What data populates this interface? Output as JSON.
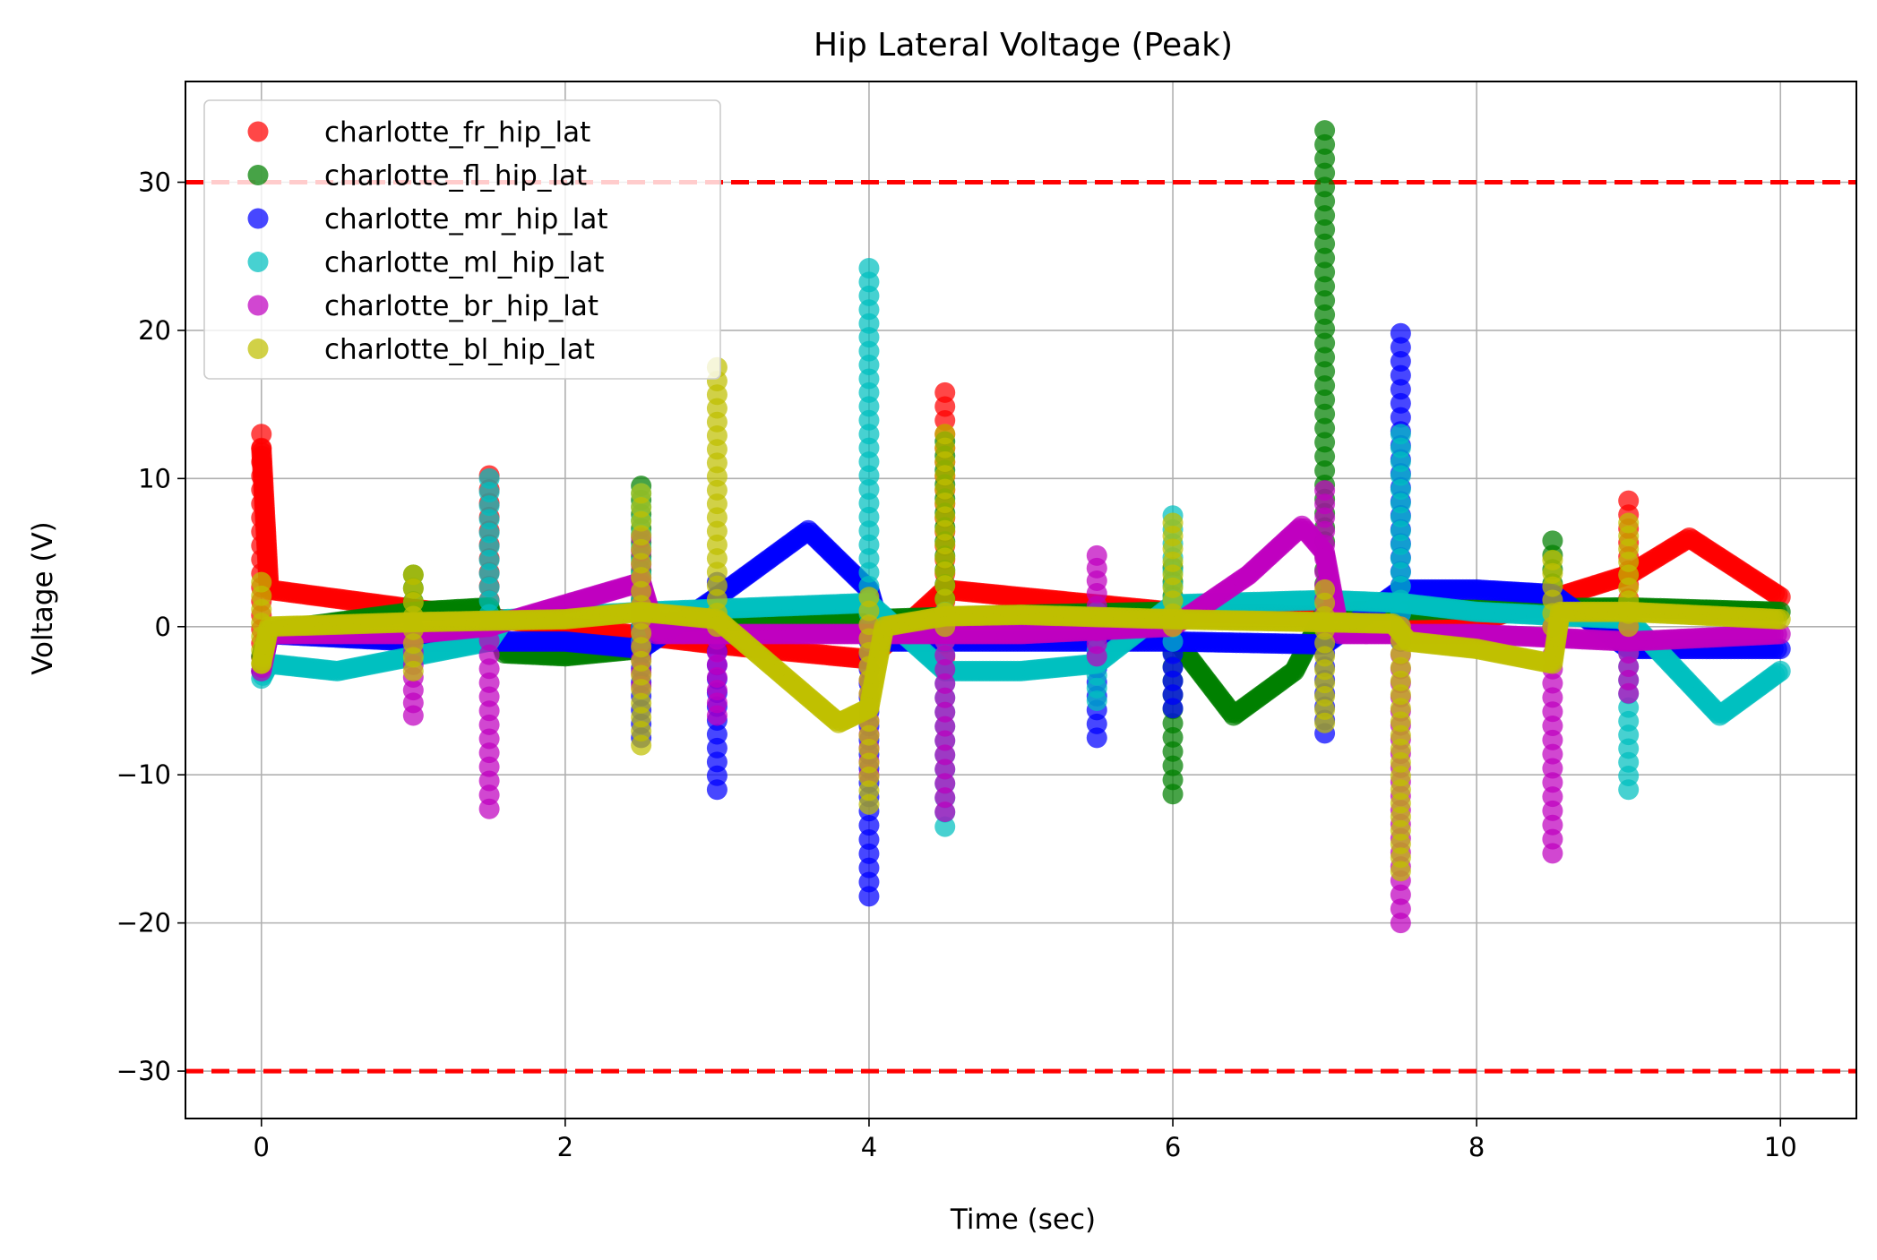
{
  "chart_data": {
    "type": "scatter",
    "title": "Hip Lateral Voltage (Peak)",
    "xlabel": "Time (sec)",
    "ylabel": "Voltage (V)",
    "xlim": [
      -0.5,
      10.5
    ],
    "ylim": [
      -33.2,
      36.8
    ],
    "xticks": [
      0,
      2,
      4,
      6,
      8,
      10
    ],
    "xtick_labels": [
      "0",
      "2",
      "4",
      "6",
      "8",
      "10"
    ],
    "yticks": [
      30,
      20,
      10,
      0,
      -10,
      -20,
      -30
    ],
    "ytick_labels": [
      "30",
      "20",
      "10",
      "0",
      "−10",
      "−20",
      "−30"
    ],
    "grid": true,
    "legend_position": "upper-left",
    "reference_lines": [
      {
        "y": 30,
        "color": "#ff0000",
        "style": "dashed"
      },
      {
        "y": -30,
        "color": "#ff0000",
        "style": "dashed"
      }
    ],
    "series": [
      {
        "name": "charlotte_fr_hip_lat",
        "color": "#ff0000",
        "baseline": [
          [
            0.0,
            12.0
          ],
          [
            0.05,
            2.5
          ],
          [
            1.0,
            1.2
          ],
          [
            2.0,
            0.0
          ],
          [
            3.0,
            -1.2
          ],
          [
            4.0,
            -2.2
          ],
          [
            4.5,
            2.5
          ],
          [
            5.0,
            2.0
          ],
          [
            6.0,
            1.0
          ],
          [
            7.0,
            0.7
          ],
          [
            8.0,
            0.3
          ],
          [
            9.0,
            3.5
          ],
          [
            9.4,
            6.0
          ],
          [
            10.0,
            2.0
          ]
        ],
        "spikes": [
          [
            0.0,
            13.0,
            -3.0
          ],
          [
            1.5,
            10.2,
            -1.0
          ],
          [
            4.5,
            15.8,
            -3.0
          ],
          [
            9.0,
            8.5,
            0.0
          ]
        ]
      },
      {
        "name": "charlotte_fl_hip_lat",
        "color": "#008000",
        "baseline": [
          [
            0.0,
            -2.0
          ],
          [
            0.05,
            -0.3
          ],
          [
            1.0,
            1.0
          ],
          [
            1.5,
            1.3
          ],
          [
            1.6,
            -1.8
          ],
          [
            2.0,
            -2.0
          ],
          [
            2.5,
            -1.5
          ],
          [
            2.6,
            0.3
          ],
          [
            4.0,
            0.5
          ],
          [
            5.0,
            0.8
          ],
          [
            5.9,
            1.0
          ],
          [
            6.1,
            -2.0
          ],
          [
            6.4,
            -6.0
          ],
          [
            6.8,
            -3.0
          ],
          [
            7.0,
            1.0
          ],
          [
            8.0,
            1.2
          ],
          [
            9.0,
            1.3
          ],
          [
            10.0,
            1.0
          ]
        ],
        "spikes": [
          [
            1.0,
            3.5,
            -1.0
          ],
          [
            2.5,
            9.5,
            -1.0
          ],
          [
            4.5,
            12.5,
            -1.0
          ],
          [
            6.0,
            4.0,
            -11.3
          ],
          [
            7.0,
            33.5,
            0.0
          ],
          [
            8.5,
            5.8,
            0.0
          ]
        ]
      },
      {
        "name": "charlotte_mr_hip_lat",
        "color": "#0000ff",
        "baseline": [
          [
            0.0,
            -3.0
          ],
          [
            0.05,
            -0.5
          ],
          [
            1.0,
            -1.0
          ],
          [
            2.0,
            -1.0
          ],
          [
            2.5,
            -1.5
          ],
          [
            3.0,
            2.0
          ],
          [
            3.6,
            6.5
          ],
          [
            4.0,
            2.5
          ],
          [
            4.1,
            -1.0
          ],
          [
            5.0,
            -1.0
          ],
          [
            6.0,
            -1.0
          ],
          [
            7.0,
            -1.2
          ],
          [
            7.5,
            2.5
          ],
          [
            8.0,
            2.5
          ],
          [
            8.5,
            2.2
          ],
          [
            9.0,
            -1.5
          ],
          [
            10.0,
            -1.5
          ]
        ],
        "spikes": [
          [
            2.5,
            0.0,
            -7.5
          ],
          [
            3.0,
            3.0,
            -11.0
          ],
          [
            4.0,
            0.0,
            -18.2
          ],
          [
            5.5,
            0.0,
            -7.5
          ],
          [
            6.0,
            0.0,
            -5.5
          ],
          [
            7.0,
            0.0,
            -7.2
          ],
          [
            7.5,
            19.8,
            -1.0
          ]
        ]
      },
      {
        "name": "charlotte_ml_hip_lat",
        "color": "#00bfbf",
        "baseline": [
          [
            0.0,
            -3.5
          ],
          [
            0.05,
            -2.5
          ],
          [
            0.5,
            -3.0
          ],
          [
            1.0,
            -2.0
          ],
          [
            1.5,
            -1.0
          ],
          [
            1.6,
            0.5
          ],
          [
            2.0,
            0.7
          ],
          [
            2.5,
            1.0
          ],
          [
            3.0,
            1.2
          ],
          [
            4.0,
            1.6
          ],
          [
            4.5,
            -3.0
          ],
          [
            5.0,
            -3.0
          ],
          [
            5.5,
            -2.5
          ],
          [
            6.0,
            1.5
          ],
          [
            7.0,
            1.8
          ],
          [
            7.5,
            1.6
          ],
          [
            8.0,
            1.0
          ],
          [
            9.0,
            0.5
          ],
          [
            9.6,
            -6.0
          ],
          [
            10.0,
            -3.0
          ]
        ],
        "spikes": [
          [
            1.5,
            10.0,
            -1.0
          ],
          [
            2.5,
            9.0,
            -1.0
          ],
          [
            4.0,
            24.2,
            -1.0
          ],
          [
            4.5,
            1.0,
            -13.5
          ],
          [
            5.5,
            1.0,
            -5.0
          ],
          [
            6.0,
            7.5,
            -1.0
          ],
          [
            7.5,
            13.0,
            -1.0
          ],
          [
            9.0,
            1.0,
            -11.0
          ]
        ]
      },
      {
        "name": "charlotte_br_hip_lat",
        "color": "#bf00bf",
        "baseline": [
          [
            0.0,
            -3.0
          ],
          [
            0.05,
            -0.5
          ],
          [
            1.0,
            -0.5
          ],
          [
            1.5,
            0.0
          ],
          [
            2.0,
            1.5
          ],
          [
            2.5,
            3.0
          ],
          [
            2.6,
            -0.5
          ],
          [
            3.0,
            -0.5
          ],
          [
            4.0,
            -0.5
          ],
          [
            5.0,
            -0.5
          ],
          [
            6.0,
            0.0
          ],
          [
            6.5,
            3.5
          ],
          [
            6.85,
            6.8
          ],
          [
            7.0,
            5.0
          ],
          [
            7.1,
            -0.5
          ],
          [
            8.0,
            -0.5
          ],
          [
            9.0,
            -1.0
          ],
          [
            10.0,
            -0.5
          ]
        ],
        "spikes": [
          [
            1.0,
            0.0,
            -6.0
          ],
          [
            1.5,
            0.0,
            -12.3
          ],
          [
            2.5,
            6.0,
            -4.0
          ],
          [
            3.0,
            0.0,
            -6.0
          ],
          [
            4.0,
            0.0,
            -10.0
          ],
          [
            4.5,
            0.0,
            -12.5
          ],
          [
            5.5,
            4.8,
            -2.0
          ],
          [
            7.0,
            9.2,
            0.0
          ],
          [
            7.5,
            0.0,
            -20.0
          ],
          [
            8.5,
            0.0,
            -15.3
          ],
          [
            9.0,
            0.0,
            -4.5
          ]
        ]
      },
      {
        "name": "charlotte_bl_hip_lat",
        "color": "#bfbf00",
        "baseline": [
          [
            0.0,
            -2.5
          ],
          [
            0.05,
            0.0
          ],
          [
            1.0,
            0.3
          ],
          [
            2.0,
            0.5
          ],
          [
            2.5,
            1.0
          ],
          [
            3.0,
            0.5
          ],
          [
            3.4,
            -3.0
          ],
          [
            3.8,
            -6.5
          ],
          [
            4.0,
            -5.5
          ],
          [
            4.1,
            0.0
          ],
          [
            4.5,
            0.7
          ],
          [
            5.0,
            0.8
          ],
          [
            6.0,
            0.5
          ],
          [
            7.0,
            0.3
          ],
          [
            7.45,
            0.2
          ],
          [
            7.55,
            -1.0
          ],
          [
            8.0,
            -1.5
          ],
          [
            8.5,
            -2.5
          ],
          [
            8.55,
            1.0
          ],
          [
            9.0,
            1.0
          ],
          [
            10.0,
            0.5
          ]
        ],
        "spikes": [
          [
            0.0,
            3.0,
            -2.5
          ],
          [
            1.0,
            3.5,
            -3.0
          ],
          [
            2.5,
            9.0,
            -8.0
          ],
          [
            3.0,
            17.5,
            0.0
          ],
          [
            4.0,
            2.0,
            -12.0
          ],
          [
            4.5,
            13.0,
            0.0
          ],
          [
            6.0,
            7.0,
            0.0
          ],
          [
            7.0,
            2.5,
            -6.5
          ],
          [
            7.5,
            0.0,
            -16.5
          ],
          [
            8.5,
            4.5,
            0.0
          ],
          [
            9.0,
            7.0,
            0.0
          ]
        ]
      }
    ]
  }
}
